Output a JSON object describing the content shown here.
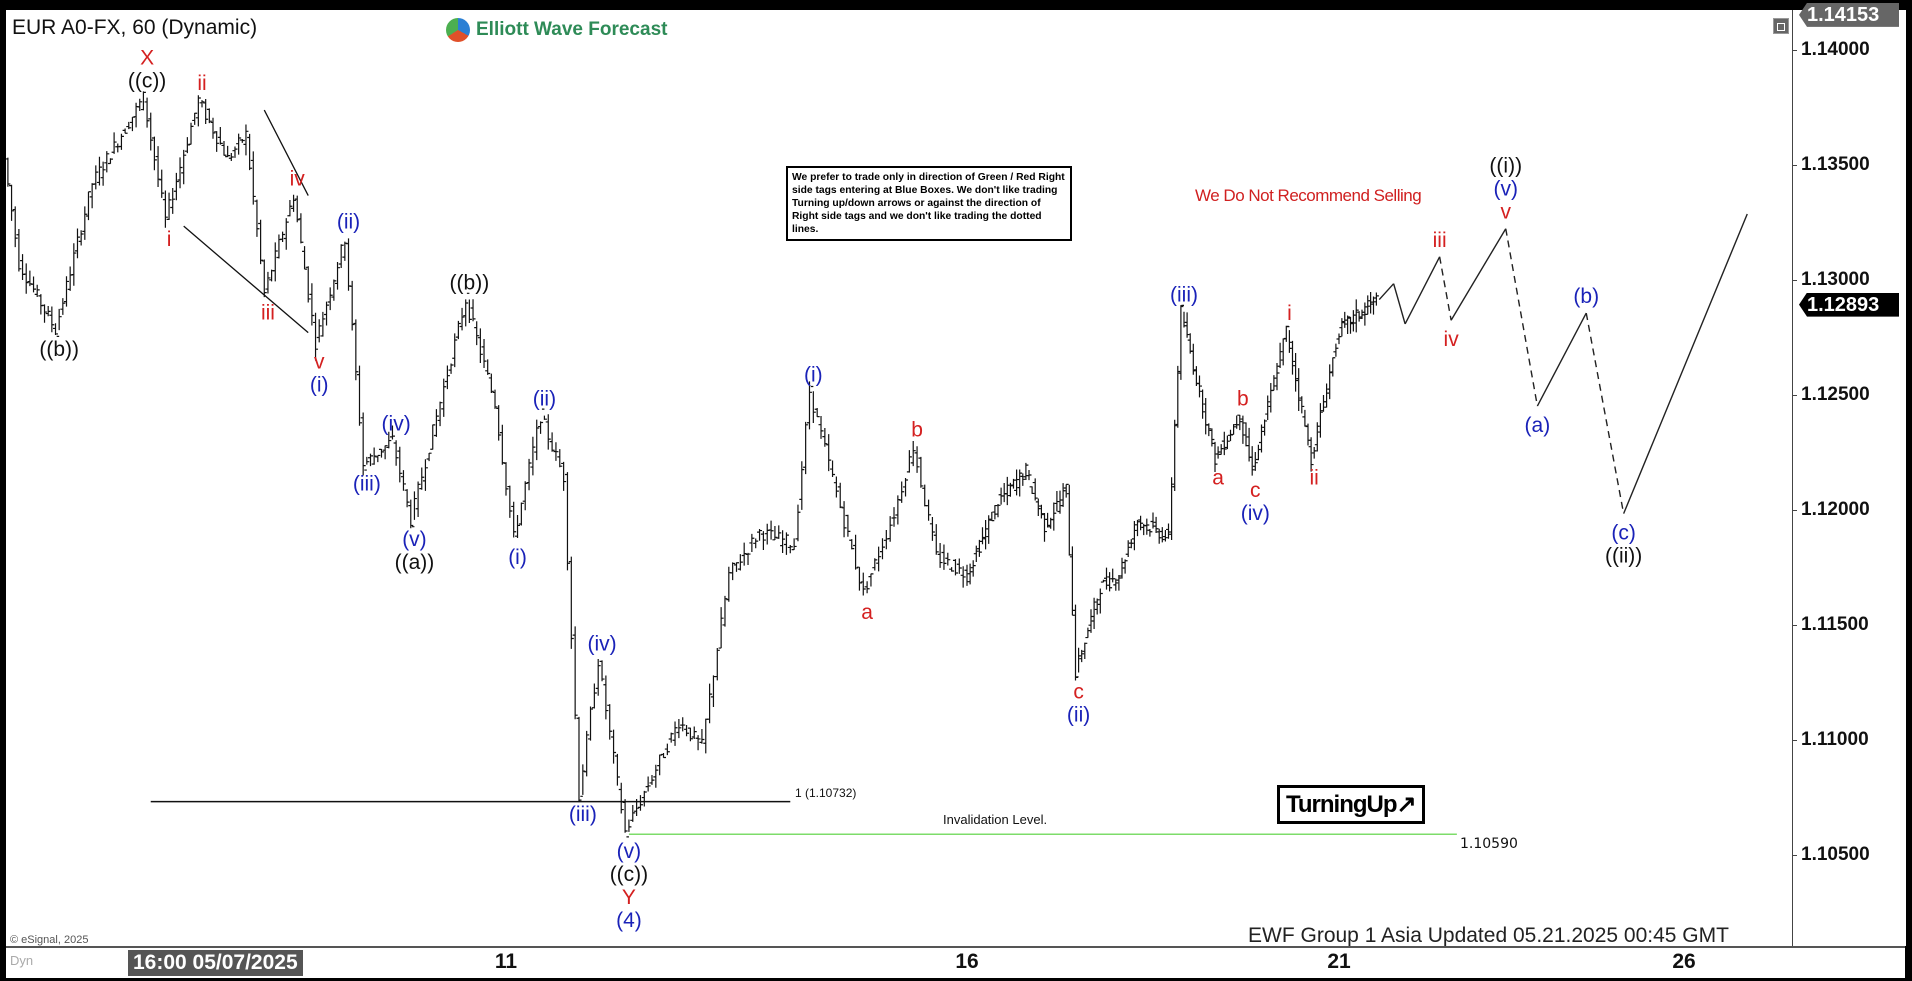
{
  "header": {
    "title": "EUR A0-FX, 60 (Dynamic)",
    "logo_text": "Elliott Wave Forecast"
  },
  "note_box": {
    "text": "We prefer to trade only in direction of Green / Red Right side tags entering at Blue Boxes. We don't like trading Turning up/down arrows or against the direction of Right side tags and we don't like trading the dotted lines."
  },
  "warning_text": "We Do Not Recommend Selling",
  "turning_up": {
    "label": "TurningUp↗"
  },
  "footer": {
    "updated": "EWF Group 1 Asia Updated 05.21.2025 00:45 GMT",
    "copyright": "© eSignal, 2025",
    "dyn_label": "Dyn"
  },
  "chart_data": {
    "type": "ohlc",
    "symbol": "EUR A0-FX",
    "interval": "60",
    "ylim": [
      1.10104,
      1.14174
    ],
    "y_ticks": [
      "1.14000",
      "1.13500",
      "1.13000",
      "1.12500",
      "1.12000",
      "1.11500",
      "1.11000",
      "1.10500"
    ],
    "high_tag": "1.14153",
    "current_price": "1.12893",
    "x_ticks": [
      {
        "label": "16:00 05/07/2025",
        "date": "2025-05-07T16:00"
      },
      {
        "label": "11",
        "date": "2025-05-11T00:00"
      },
      {
        "label": "16",
        "date": "2025-05-16T00:00"
      },
      {
        "label": "21",
        "date": "2025-05-21T00:00"
      },
      {
        "label": "26",
        "date": "2025-05-26T00:00"
      }
    ],
    "colors": {
      "red": "#d42020",
      "blue": "#1a22b8",
      "black": "#111111",
      "invalidation": "#7ddc6a"
    },
    "price_path": [
      {
        "t": "2025-05-05T08:00",
        "p": 1.13527
      },
      {
        "t": "2025-05-05T12:00",
        "p": 1.13074
      },
      {
        "t": "2025-05-05T22:00",
        "p": 1.12782,
        "labels": [
          {
            "text": "((b))",
            "color": "black"
          }
        ],
        "pos": "below"
      },
      {
        "t": "2025-05-06T08:00",
        "p": 1.1342
      },
      {
        "t": "2025-05-06T22:00",
        "p": 1.13793,
        "pos": "above",
        "labels": [
          {
            "text": "X",
            "color": "red"
          },
          {
            "text": "((c))",
            "color": "black"
          }
        ]
      },
      {
        "t": "2025-05-07T04:00",
        "p": 1.13261,
        "pos": "below",
        "labels": [
          {
            "text": "i",
            "color": "red"
          }
        ]
      },
      {
        "t": "2025-05-07T13:00",
        "p": 1.13782,
        "pos": "above",
        "labels": [
          {
            "text": "ii",
            "color": "red"
          }
        ]
      },
      {
        "t": "2025-05-07T21:00",
        "p": 1.13527
      },
      {
        "t": "2025-05-08T02:00",
        "p": 1.13633
      },
      {
        "t": "2025-05-08T07:00",
        "p": 1.12941,
        "pos": "below",
        "labels": [
          {
            "text": "iii",
            "color": "red"
          }
        ]
      },
      {
        "t": "2025-05-08T15:00",
        "p": 1.13367,
        "pos": "above",
        "labels": [
          {
            "text": "iv",
            "color": "red"
          }
        ]
      },
      {
        "t": "2025-05-08T21:00",
        "p": 1.12729,
        "pos": "below",
        "labels": [
          {
            "text": "v",
            "color": "red"
          },
          {
            "text": "(i)",
            "color": "blue"
          }
        ]
      },
      {
        "t": "2025-05-09T05:00",
        "p": 1.13181,
        "pos": "above",
        "labels": [
          {
            "text": "(ii)",
            "color": "blue"
          }
        ]
      },
      {
        "t": "2025-05-09T10:00",
        "p": 1.12197,
        "pos": "below",
        "labels": [
          {
            "text": "(iii)",
            "color": "blue"
          }
        ]
      },
      {
        "t": "2025-05-09T18:00",
        "p": 1.12303,
        "pos": "above",
        "labels": [
          {
            "text": "(iv)",
            "color": "blue"
          }
        ]
      },
      {
        "t": "2025-05-09T23:00",
        "p": 1.11957,
        "pos": "below",
        "labels": [
          {
            "text": "(v)",
            "color": "blue"
          },
          {
            "text": "((a))",
            "color": "black"
          }
        ]
      },
      {
        "t": "2025-05-10T14:00",
        "p": 1.12915,
        "pos": "above",
        "labels": [
          {
            "text": "((b))",
            "color": "black"
          }
        ]
      },
      {
        "t": "2025-05-10T22:00",
        "p": 1.12463
      },
      {
        "t": "2025-05-11T03:00",
        "p": 1.11878,
        "pos": "below",
        "labels": [
          {
            "text": "(i)",
            "color": "blue"
          }
        ]
      },
      {
        "t": "2025-05-11T10:00",
        "p": 1.1241,
        "pos": "above",
        "labels": [
          {
            "text": "(ii)",
            "color": "blue"
          }
        ]
      },
      {
        "t": "2025-05-11T16:00",
        "p": 1.12144
      },
      {
        "t": "2025-05-11T20:00",
        "p": 1.10761,
        "pos": "below",
        "labels": [
          {
            "text": "(iii)",
            "color": "blue"
          }
        ]
      },
      {
        "t": "2025-05-12T01:00",
        "p": 1.11346,
        "pos": "above",
        "labels": [
          {
            "text": "(iv)",
            "color": "blue"
          }
        ]
      },
      {
        "t": "2025-05-12T08:00",
        "p": 1.106,
        "pos": "below",
        "labels": [
          {
            "text": "(v)",
            "color": "blue"
          },
          {
            "text": "((c))",
            "color": "black"
          },
          {
            "text": "Y",
            "color": "red"
          },
          {
            "text": "(4)",
            "color": "blue"
          }
        ]
      },
      {
        "t": "2025-05-12T22:00",
        "p": 1.1108
      },
      {
        "t": "2025-05-13T04:00",
        "p": 1.10973
      },
      {
        "t": "2025-05-13T11:00",
        "p": 1.11718
      },
      {
        "t": "2025-05-13T19:00",
        "p": 1.11904
      },
      {
        "t": "2025-05-14T04:00",
        "p": 1.11851
      },
      {
        "t": "2025-05-14T08:00",
        "p": 1.12516,
        "pos": "above",
        "labels": [
          {
            "text": "(i)",
            "color": "blue"
          }
        ]
      },
      {
        "t": "2025-05-14T22:00",
        "p": 1.11638,
        "pos": "below",
        "labels": [
          {
            "text": "a",
            "color": "red"
          }
        ]
      },
      {
        "t": "2025-05-15T06:00",
        "p": 1.11984
      },
      {
        "t": "2025-05-15T11:00",
        "p": 1.12277,
        "pos": "above",
        "labels": [
          {
            "text": "b",
            "color": "red"
          }
        ]
      },
      {
        "t": "2025-05-15T17:00",
        "p": 1.11798
      },
      {
        "t": "2025-05-16T01:00",
        "p": 1.11718
      },
      {
        "t": "2025-05-16T11:00",
        "p": 1.12037
      },
      {
        "t": "2025-05-16T20:00",
        "p": 1.1217
      },
      {
        "t": "2025-05-17T02:00",
        "p": 1.11931
      },
      {
        "t": "2025-05-17T09:00",
        "p": 1.1209
      },
      {
        "t": "2025-05-17T12:00",
        "p": 1.11293,
        "pos": "below",
        "labels": [
          {
            "text": "c",
            "color": "red"
          },
          {
            "text": "(ii)",
            "color": "blue"
          }
        ]
      },
      {
        "t": "2025-05-17T20:00",
        "p": 1.11665
      },
      {
        "t": "2025-05-18T02:00",
        "p": 1.11718
      },
      {
        "t": "2025-05-18T08:00",
        "p": 1.11957
      },
      {
        "t": "2025-05-18T18:00",
        "p": 1.11878
      },
      {
        "t": "2025-05-18T22:00",
        "p": 1.12862,
        "pos": "above",
        "labels": [
          {
            "text": "(iii)",
            "color": "blue"
          }
        ]
      },
      {
        "t": "2025-05-19T09:00",
        "p": 1.12223,
        "pos": "below",
        "labels": [
          {
            "text": "a",
            "color": "red"
          }
        ]
      },
      {
        "t": "2025-05-19T17:00",
        "p": 1.1241,
        "pos": "above",
        "labels": [
          {
            "text": "b",
            "color": "red"
          }
        ]
      },
      {
        "t": "2025-05-19T21:00",
        "p": 1.1217,
        "pos": "below",
        "labels": [
          {
            "text": "c",
            "color": "red"
          },
          {
            "text": "(iv)",
            "color": "blue"
          }
        ]
      },
      {
        "t": "2025-05-20T08:00",
        "p": 1.12782,
        "pos": "above",
        "labels": [
          {
            "text": "i",
            "color": "red"
          }
        ]
      },
      {
        "t": "2025-05-20T16:00",
        "p": 1.12223,
        "pos": "below",
        "labels": [
          {
            "text": "ii",
            "color": "red"
          }
        ]
      },
      {
        "t": "2025-05-21T01:00",
        "p": 1.12782
      },
      {
        "t": "2025-05-21T14:00",
        "p": 1.12915
      }
    ],
    "projection_path": [
      {
        "t": "2025-05-21T14:00",
        "p": 1.12915
      },
      {
        "t": "2025-05-21T19:00",
        "p": 1.12984,
        "dashed": false
      },
      {
        "t": "2025-05-21T23:00",
        "p": 1.12809,
        "dashed": false
      },
      {
        "t": "2025-05-22T11:00",
        "p": 1.13101,
        "dashed": false,
        "pos": "above",
        "labels": [
          {
            "text": "iii",
            "color": "red"
          }
        ]
      },
      {
        "t": "2025-05-22T15:00",
        "p": 1.12825,
        "dashed": true,
        "pos": "below",
        "labels": [
          {
            "text": "iv",
            "color": "red"
          }
        ]
      },
      {
        "t": "2025-05-23T10:00",
        "p": 1.13223,
        "dashed": false,
        "pos": "above",
        "labels": [
          {
            "text": "((i))",
            "color": "black"
          },
          {
            "text": "(v)",
            "color": "blue"
          },
          {
            "text": "v",
            "color": "red"
          }
        ]
      },
      {
        "t": "2025-05-23T21:00",
        "p": 1.12452,
        "dashed": true,
        "pos": "below",
        "labels": [
          {
            "text": "(a)",
            "color": "blue"
          }
        ]
      },
      {
        "t": "2025-05-24T14:00",
        "p": 1.12856,
        "dashed": false,
        "pos": "above",
        "labels": [
          {
            "text": "(b)",
            "color": "blue"
          }
        ]
      },
      {
        "t": "2025-05-25T03:00",
        "p": 1.11984,
        "dashed": true,
        "pos": "below",
        "labels": [
          {
            "text": "(c)",
            "color": "blue"
          },
          {
            "text": "((ii))",
            "color": "black"
          }
        ]
      },
      {
        "t": "2025-05-26T22:00",
        "p": 1.13287,
        "dashed": false
      }
    ],
    "trend_lines": [
      {
        "from": {
          "t": "2025-05-08T06:00",
          "p": 1.13739
        },
        "to": {
          "t": "2025-05-08T18:00",
          "p": 1.13367
        }
      },
      {
        "from": {
          "t": "2025-05-07T08:00",
          "p": 1.13234
        },
        "to": {
          "t": "2025-05-08T18:00",
          "p": 1.12771
        }
      }
    ],
    "levels": [
      {
        "label": "1 (1.10732)",
        "price": 1.10732,
        "from": "2025-05-06T23:00",
        "to": "2025-05-14T02:00",
        "color": "black"
      },
      {
        "label": "1.10590",
        "caption": "Invalidation Level.",
        "price": 1.1059,
        "from": "2025-05-12T08:00",
        "to": "2025-05-22T17:00",
        "color": "invalidation"
      }
    ]
  }
}
